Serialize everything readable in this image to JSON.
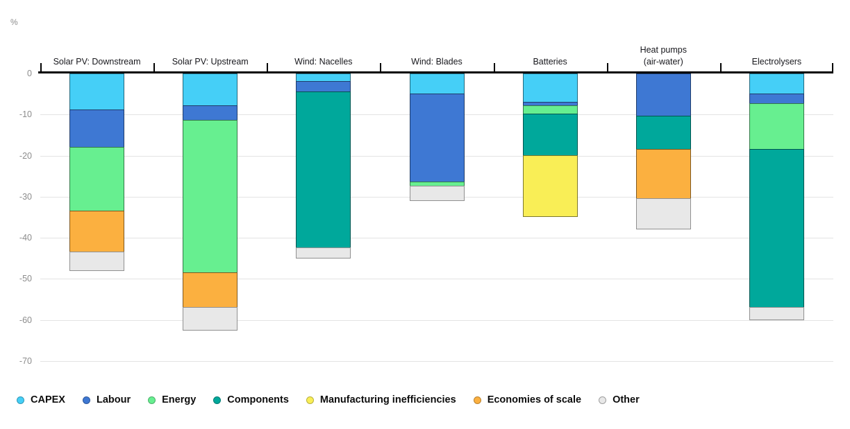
{
  "chart_data": {
    "type": "bar",
    "stacked": true,
    "unit": "%",
    "title": "",
    "xlabel": "",
    "ylabel": "%",
    "ylim": [
      -70,
      0
    ],
    "yticks": [
      0,
      -10,
      -20,
      -30,
      -40,
      -50,
      -60,
      -70
    ],
    "grid": "horizontal",
    "legend_position": "bottom",
    "categories": [
      "Solar PV: Downstream",
      "Solar PV: Upstream",
      "Wind: Nacelles",
      "Wind: Blades",
      "Batteries",
      "Heat pumps\n(air-water)",
      "Electrolysers"
    ],
    "series": [
      {
        "name": "CAPEX",
        "color": "#45CFF7",
        "values": [
          9,
          8,
          2,
          5,
          7,
          0,
          5
        ]
      },
      {
        "name": "Labour",
        "color": "#3E78D3",
        "values": [
          9,
          3.5,
          2.5,
          21.5,
          1,
          10.5,
          2.5
        ]
      },
      {
        "name": "Energy",
        "color": "#67EF90",
        "values": [
          15.5,
          37,
          0,
          1,
          2,
          0,
          11
        ]
      },
      {
        "name": "Components",
        "color": "#00A89B",
        "values": [
          0,
          0,
          38,
          0,
          10,
          8,
          38.5
        ]
      },
      {
        "name": "Manufacturing inefficiencies",
        "color": "#F9EE56",
        "values": [
          0,
          0,
          0,
          0,
          15,
          0,
          0
        ]
      },
      {
        "name": "Economies of scale",
        "color": "#FBB040",
        "values": [
          10,
          8.5,
          0,
          0,
          0,
          12,
          0
        ]
      },
      {
        "name": "Other",
        "color": "#E8E8E8",
        "values": [
          4.5,
          5.5,
          2.5,
          3.5,
          0,
          7.5,
          3
        ]
      }
    ],
    "totals": [
      -48,
      -62.5,
      -45,
      -31,
      -35,
      -38,
      -60
    ]
  }
}
